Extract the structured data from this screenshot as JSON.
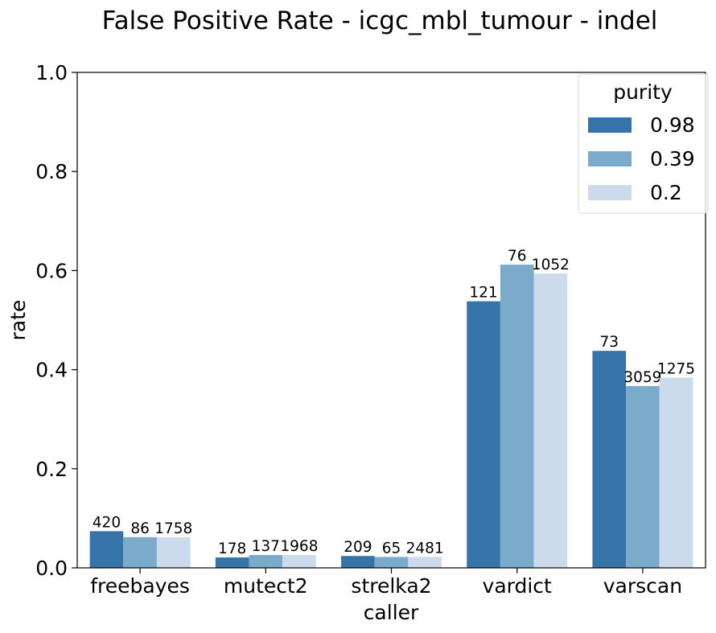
{
  "chart_data": {
    "type": "bar",
    "title": "False Positive Rate - icgc_mbl_tumour - indel",
    "xlabel": "caller",
    "ylabel": "rate",
    "ylim": [
      0,
      1.0
    ],
    "yticks": [
      "0.0",
      "0.2",
      "0.4",
      "0.6",
      "0.8",
      "1.0"
    ],
    "categories": [
      "freebayes",
      "mutect2",
      "strelka2",
      "vardict",
      "varscan"
    ],
    "legend": {
      "title": "purity",
      "placement": "top-right"
    },
    "series": [
      {
        "name": "0.98",
        "color": "#3573a8",
        "values": [
          0.074,
          0.021,
          0.024,
          0.538,
          0.438
        ],
        "labels": [
          "420",
          "178",
          "209",
          "121",
          "73"
        ]
      },
      {
        "name": "0.39",
        "color": "#7aabcb",
        "values": [
          0.062,
          0.026,
          0.022,
          0.612,
          0.367
        ],
        "labels": [
          "86",
          "137",
          "65",
          "76",
          "3059"
        ]
      },
      {
        "name": "0.2",
        "color": "#cbdbeb",
        "values": [
          0.062,
          0.026,
          0.022,
          0.594,
          0.384
        ],
        "labels": [
          "1758",
          "1968",
          "2481",
          "1052",
          "1275"
        ]
      }
    ],
    "grid": false
  }
}
